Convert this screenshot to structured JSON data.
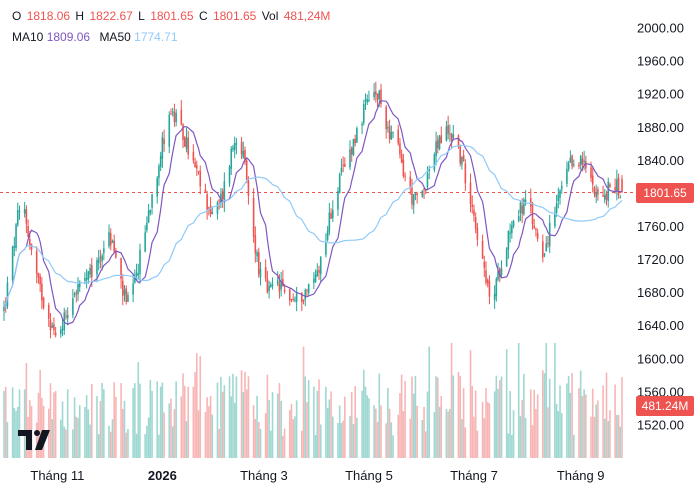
{
  "legend": {
    "open_label": "O",
    "open": "1818.06",
    "high_label": "H",
    "high": "1822.67",
    "low_label": "L",
    "low": "1801.65",
    "close_label": "C",
    "close": "1801.65",
    "vol_label": "Vol",
    "vol": "481,24M",
    "ma10_label": "MA10",
    "ma10": "1809.06",
    "ma50_label": "MA50",
    "ma50": "1774.71"
  },
  "price_axis": {
    "ticks": [
      "2000.00",
      "1960.00",
      "1920.00",
      "1880.00",
      "1840.00",
      "1800.00",
      "1760.00",
      "1720.00",
      "1680.00",
      "1640.00",
      "1600.00",
      "1560.00",
      "1520.00"
    ]
  },
  "time_axis": {
    "labels": [
      "Tháng 11",
      "2026",
      "Tháng 3",
      "Tháng 5",
      "Tháng 7",
      "Tháng 9"
    ]
  },
  "last_price_tag": "1801.65",
  "last_volume_tag": "481.24M",
  "colors": {
    "up": "#26a69a",
    "down": "#ef5350",
    "ma10": "#7e57c2",
    "ma50": "#90caf9",
    "up_vol": "#9fd8d2",
    "down_vol": "#f7b6b5"
  },
  "chart_data": {
    "type": "candlestick",
    "x_start": "2025-10-01",
    "x_end": "2026-09-25",
    "ylim": [
      1500,
      2020
    ],
    "last_close": 1801.65,
    "anchors": [
      [
        "2025-10-01",
        1660
      ],
      [
        "2025-10-04",
        1700
      ],
      [
        "2025-10-09",
        1770
      ],
      [
        "2025-10-13",
        1780
      ],
      [
        "2025-10-16",
        1740
      ],
      [
        "2025-10-21",
        1690
      ],
      [
        "2025-10-26",
        1660
      ],
      [
        "2025-10-31",
        1625
      ],
      [
        "2025-11-05",
        1650
      ],
      [
        "2025-11-10",
        1680
      ],
      [
        "2025-11-15",
        1690
      ],
      [
        "2025-11-20",
        1700
      ],
      [
        "2025-11-25",
        1720
      ],
      [
        "2025-11-30",
        1750
      ],
      [
        "2025-12-03",
        1740
      ],
      [
        "2025-12-07",
        1700
      ],
      [
        "2025-12-11",
        1665
      ],
      [
        "2025-12-16",
        1690
      ],
      [
        "2025-12-21",
        1745
      ],
      [
        "2025-12-26",
        1800
      ],
      [
        "2026-01-01",
        1860
      ],
      [
        "2026-01-05",
        1900
      ],
      [
        "2026-01-10",
        1885
      ],
      [
        "2026-01-15",
        1860
      ],
      [
        "2026-01-20",
        1830
      ],
      [
        "2026-01-25",
        1800
      ],
      [
        "2026-01-31",
        1770
      ],
      [
        "2026-02-05",
        1800
      ],
      [
        "2026-02-10",
        1850
      ],
      [
        "2026-02-14",
        1880
      ],
      [
        "2026-02-18",
        1830
      ],
      [
        "2026-02-22",
        1760
      ],
      [
        "2026-02-27",
        1700
      ],
      [
        "2026-03-04",
        1680
      ],
      [
        "2026-03-09",
        1690
      ],
      [
        "2026-03-14",
        1680
      ],
      [
        "2026-03-19",
        1670
      ],
      [
        "2026-03-24",
        1680
      ],
      [
        "2026-03-29",
        1690
      ],
      [
        "2026-04-03",
        1720
      ],
      [
        "2026-04-08",
        1770
      ],
      [
        "2026-04-13",
        1810
      ],
      [
        "2026-04-18",
        1840
      ],
      [
        "2026-04-23",
        1870
      ],
      [
        "2026-04-28",
        1900
      ],
      [
        "2026-05-03",
        1920
      ],
      [
        "2026-05-07",
        1915
      ],
      [
        "2026-05-12",
        1880
      ],
      [
        "2026-05-17",
        1860
      ],
      [
        "2026-05-22",
        1820
      ],
      [
        "2026-05-27",
        1790
      ],
      [
        "2026-06-01",
        1800
      ],
      [
        "2026-06-05",
        1830
      ],
      [
        "2026-06-10",
        1860
      ],
      [
        "2026-06-15",
        1875
      ],
      [
        "2026-06-20",
        1870
      ],
      [
        "2026-06-25",
        1830
      ],
      [
        "2026-06-30",
        1790
      ],
      [
        "2026-07-04",
        1740
      ],
      [
        "2026-07-08",
        1690
      ],
      [
        "2026-07-12",
        1670
      ],
      [
        "2026-07-17",
        1720
      ],
      [
        "2026-07-22",
        1760
      ],
      [
        "2026-07-27",
        1780
      ],
      [
        "2026-08-01",
        1790
      ],
      [
        "2026-08-05",
        1760
      ],
      [
        "2026-08-10",
        1730
      ],
      [
        "2026-08-15",
        1760
      ],
      [
        "2026-08-20",
        1800
      ],
      [
        "2026-08-25",
        1830
      ],
      [
        "2026-08-30",
        1845
      ],
      [
        "2026-09-04",
        1830
      ],
      [
        "2026-09-09",
        1810
      ],
      [
        "2026-09-14",
        1790
      ],
      [
        "2026-09-19",
        1815
      ],
      [
        "2026-09-25",
        1801.65
      ]
    ],
    "moving_averages": [
      {
        "name": "MA10",
        "period": 10
      },
      {
        "name": "MA50",
        "period": 50
      }
    ],
    "grid": false
  }
}
